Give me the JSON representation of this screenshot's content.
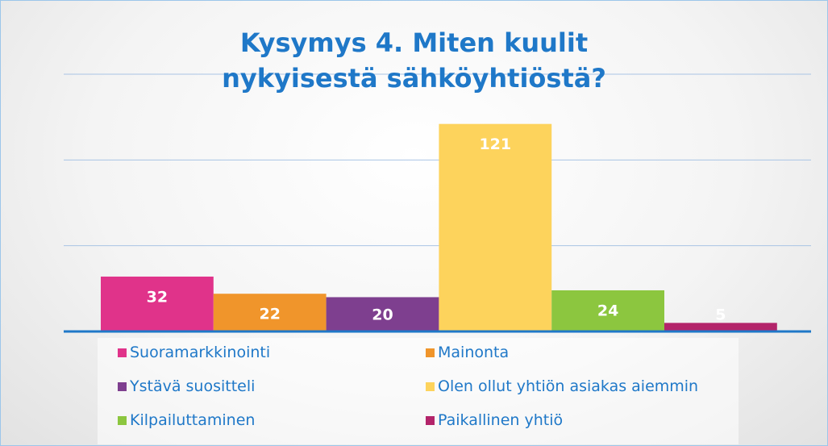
{
  "chart_data": {
    "type": "bar",
    "title": "Kysymys 4. Miten kuulit nykyisestä sähköyhtiöstä?",
    "series": [
      {
        "name": "Suoramarkkinointi",
        "color": "#e0338a",
        "values": [
          32
        ]
      },
      {
        "name": "Mainonta",
        "color": "#f0952b",
        "values": [
          22
        ]
      },
      {
        "name": "Ystävä suositteli",
        "color": "#7e3f8f",
        "values": [
          20
        ]
      },
      {
        "name": "Olen ollut yhtiön asiakas aiemmin",
        "color": "#fdd35c",
        "values": [
          121
        ]
      },
      {
        "name": "Kilpailuttaminen",
        "color": "#8cc63f",
        "values": [
          24
        ]
      },
      {
        "name": "Paikallinen yhtiö",
        "color": "#b3246a",
        "values": [
          5
        ]
      }
    ],
    "ylim": [
      0,
      150
    ],
    "yticks": [
      0,
      50,
      100,
      150
    ],
    "grid": true,
    "legend": "bottom"
  }
}
